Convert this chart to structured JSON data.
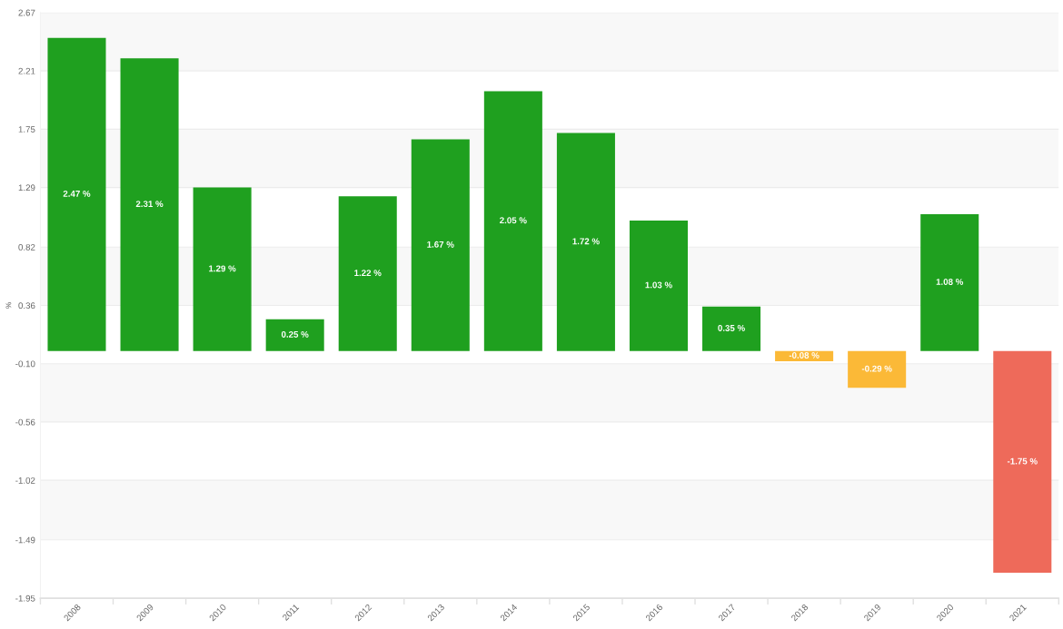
{
  "chart_data": {
    "type": "bar",
    "ylabel": "%",
    "categories": [
      "2008",
      "2009",
      "2010",
      "2011",
      "2012",
      "2013",
      "2014",
      "2015",
      "2016",
      "2017",
      "2018",
      "2019",
      "2020",
      "2021"
    ],
    "values": [
      2.47,
      2.31,
      1.29,
      0.25,
      1.22,
      1.67,
      2.05,
      1.72,
      1.03,
      0.35,
      -0.08,
      -0.29,
      1.08,
      -1.75
    ],
    "colors": [
      "#1fa01f",
      "#1fa01f",
      "#1fa01f",
      "#1fa01f",
      "#1fa01f",
      "#1fa01f",
      "#1fa01f",
      "#1fa01f",
      "#1fa01f",
      "#1fa01f",
      "#fbb937",
      "#fbb937",
      "#1fa01f",
      "#ee6a5a"
    ],
    "value_labels": [
      "2.47 %",
      "2.31 %",
      "1.29 %",
      "0.25 %",
      "1.22 %",
      "1.67 %",
      "2.05 %",
      "1.72 %",
      "1.03 %",
      "0.35 %",
      "-0.08 %",
      "-0.29 %",
      "1.08 %",
      "-1.75 %"
    ],
    "ylim": [
      -1.95,
      2.67
    ],
    "yticks": [
      -1.95,
      -1.49,
      -1.02,
      -0.56,
      {
        "value": -0.1,
        "label": "-0.10"
      },
      0.36,
      0.82,
      1.29,
      1.75,
      2.21,
      2.67
    ],
    "bands": [
      {
        "axis": "y",
        "from": 2.21,
        "to": 2.67,
        "color": "#f8f8f8"
      },
      {
        "axis": "y",
        "from": 1.29,
        "to": 1.75,
        "color": "#f8f8f8"
      },
      {
        "axis": "y",
        "from": 0.36,
        "to": 0.82,
        "color": "#f8f8f8"
      },
      {
        "axis": "y",
        "from": -0.56,
        "to": -0.1,
        "color": "#f8f8f8"
      },
      {
        "axis": "y",
        "from": -1.49,
        "to": -1.02,
        "color": "#f8f8f8"
      }
    ],
    "grid": "y"
  }
}
